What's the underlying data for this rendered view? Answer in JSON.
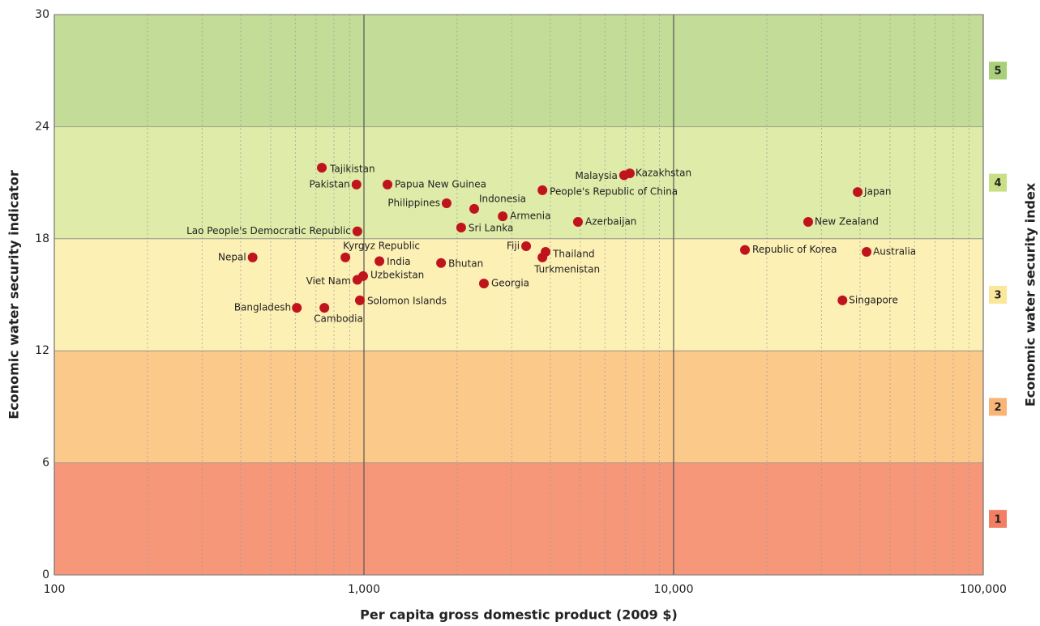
{
  "chart_data": {
    "type": "scatter",
    "xlabel": "Per capita gross domestic product (2009 $)",
    "ylabel": "Economic water security indicator",
    "y2label": "Economic water security index",
    "xscale": "log",
    "xlim": [
      100,
      100000
    ],
    "xticks": [
      100,
      {
        "value": 1000,
        "label": "1,000"
      },
      {
        "value": 10000,
        "label": "10,000"
      },
      {
        "value": 100000,
        "label": "100,000"
      }
    ],
    "ylim": [
      0,
      30
    ],
    "yticks": [
      0,
      6,
      12,
      18,
      24,
      30
    ],
    "minor_grid": true,
    "bands": [
      {
        "from": 0,
        "to": 6,
        "label": "1",
        "color": "#f7977a",
        "label_color": "#f27f64"
      },
      {
        "from": 6,
        "to": 12,
        "label": "2",
        "color": "#fbc98a",
        "label_color": "#f9b577"
      },
      {
        "from": 12,
        "to": 18,
        "label": "3",
        "color": "#fdf0b4",
        "label_color": "#fbe79a"
      },
      {
        "from": 18,
        "to": 24,
        "label": "4",
        "color": "#dfeba8",
        "label_color": "#c9df85"
      },
      {
        "from": 24,
        "to": 30,
        "label": "5",
        "color": "#c3dc97",
        "label_color": "#a9cf7a"
      }
    ],
    "color": "#c0141c",
    "labels": [
      "Tajikistan",
      "Pakistan",
      "Papua New Guinea",
      "Philippines",
      "Indonesia",
      "Armenia",
      "People's Republic of China",
      "Malaysia",
      "Kazakhstan",
      "Azerbaijan",
      "Japan",
      "New Zealand",
      "Lao People's Democratic Republic",
      "Sri Lanka",
      "Nepal",
      "Kyrgyz Republic",
      "India",
      "Bhutan",
      "Fiji",
      "Thailand",
      "Turkmenistan",
      "Republic of Korea",
      "Australia",
      "Viet Nam",
      "Uzbekistan",
      "Georgia",
      "Solomon Islands",
      "Bangladesh",
      "Cambodia",
      "Singapore"
    ],
    "x": [
      731,
      946,
      1191,
      1849,
      2270,
      2806,
      3770,
      6920,
      7220,
      4910,
      39300,
      27200,
      952,
      2060,
      437,
      871,
      1122,
      1774,
      3340,
      3860,
      3770,
      17000,
      42000,
      952,
      994,
      2440,
      970,
      607,
      745,
      35100
    ],
    "y": [
      21.8,
      20.9,
      20.9,
      19.9,
      19.6,
      19.2,
      20.6,
      21.4,
      21.5,
      18.9,
      20.5,
      18.9,
      18.4,
      18.6,
      17.0,
      17.0,
      16.8,
      16.7,
      17.6,
      17.3,
      17.0,
      17.4,
      17.3,
      15.8,
      16.0,
      15.6,
      14.7,
      14.3,
      14.3,
      14.7
    ]
  }
}
